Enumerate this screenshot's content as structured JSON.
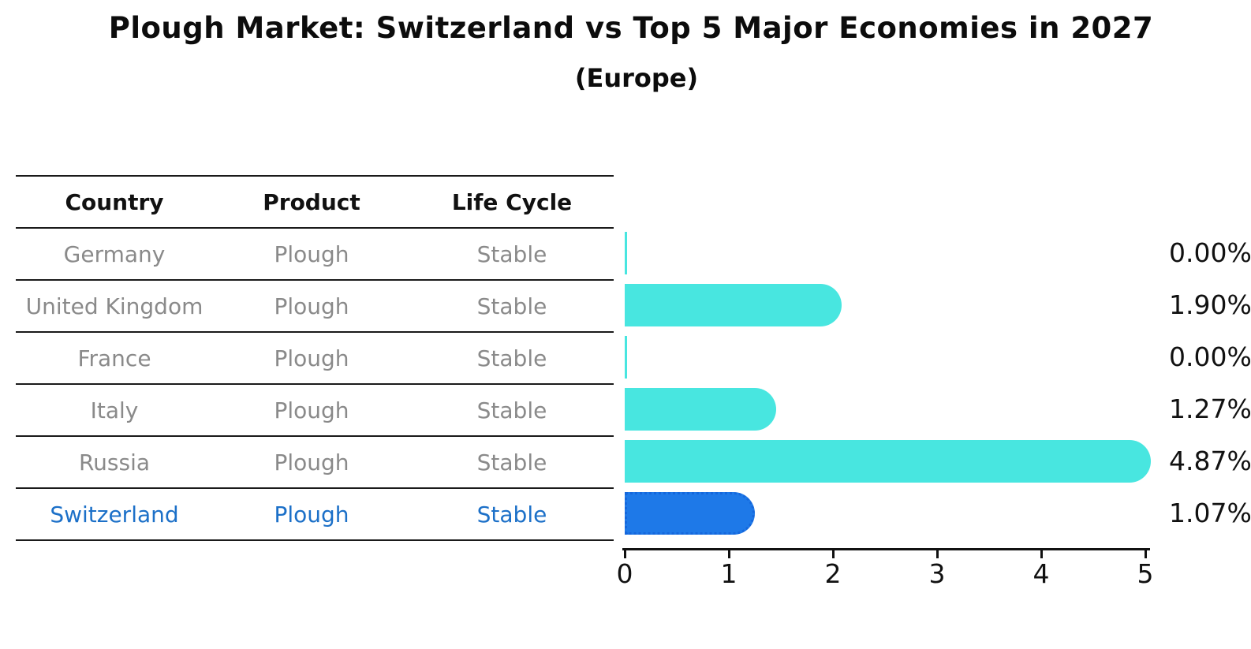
{
  "title": "Plough Market: Switzerland vs Top 5 Major Economies in 2027",
  "subtitle": "(Europe)",
  "table": {
    "headers": [
      "Country",
      "Product",
      "Life Cycle"
    ],
    "rows": [
      {
        "country": "Germany",
        "product": "Plough",
        "life_cycle": "Stable",
        "highlight": false
      },
      {
        "country": "United Kingdom",
        "product": "Plough",
        "life_cycle": "Stable",
        "highlight": false
      },
      {
        "country": "France",
        "product": "Plough",
        "life_cycle": "Stable",
        "highlight": false
      },
      {
        "country": "Italy",
        "product": "Plough",
        "life_cycle": "Stable",
        "highlight": false
      },
      {
        "country": "Russia",
        "product": "Plough",
        "life_cycle": "Stable",
        "highlight": false
      },
      {
        "country": "Switzerland",
        "product": "Plough",
        "life_cycle": "Stable",
        "highlight": true
      }
    ]
  },
  "chart_data": {
    "type": "bar",
    "orientation": "horizontal",
    "title": "Plough Market: Switzerland vs Top 5 Major Economies in 2027",
    "subtitle": "(Europe)",
    "categories": [
      "Germany",
      "United Kingdom",
      "France",
      "Italy",
      "Russia",
      "Switzerland"
    ],
    "values": [
      0.0,
      1.9,
      0.0,
      1.27,
      4.87,
      1.07
    ],
    "value_labels": [
      "0.00%",
      "1.90%",
      "0.00%",
      "1.27%",
      "4.87%",
      "1.07%"
    ],
    "xlim": [
      0,
      5
    ],
    "x_ticks": [
      "0",
      "1",
      "2",
      "3",
      "4",
      "5"
    ],
    "highlight_index": 5,
    "grid": false,
    "legend": false,
    "colors": {
      "bar_default": "#48E6E0",
      "bar_highlight": "#1E79E8",
      "bar_highlight_border": "#1567DC",
      "highlight_text": "#1C70C8",
      "row_text": "#8a8a8a",
      "header_text": "#111111",
      "axis_text": "#111111"
    }
  }
}
